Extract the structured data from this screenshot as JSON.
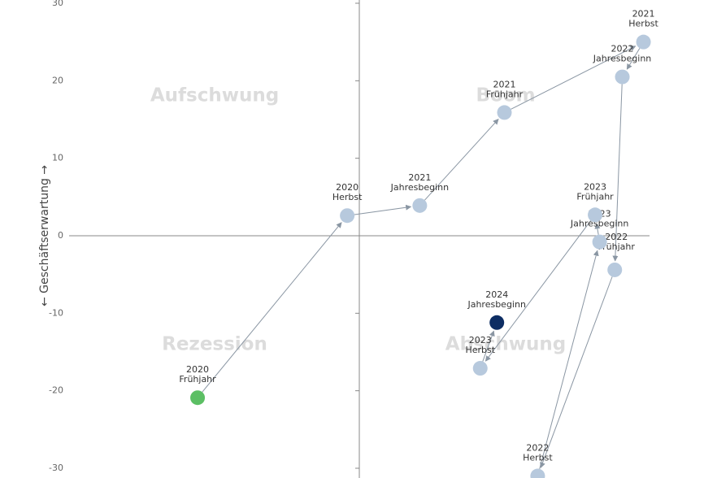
{
  "chart_data": {
    "type": "scatter",
    "y_label": "← Geschäftserwartung →",
    "quadrants": [
      "Aufschwung",
      "Boom",
      "Rezession",
      "Abschwung"
    ],
    "xlim": [
      -19.2,
      19.2
    ],
    "ylim": [
      -30,
      30
    ],
    "yticks": [
      -30,
      -20,
      -10,
      0,
      10,
      20,
      30
    ],
    "points": [
      {
        "year": "2020",
        "season": "Frühjahr",
        "x": -10.7,
        "y": -20.9,
        "color": "#5cbf64"
      },
      {
        "year": "2020",
        "season": "Herbst",
        "x": -0.8,
        "y": 2.6,
        "color": "#b7c9dd"
      },
      {
        "year": "2021",
        "season": "Jahresbeginn",
        "x": 4.0,
        "y": 3.9,
        "color": "#b7c9dd"
      },
      {
        "year": "2021",
        "season": "Frühjahr",
        "x": 9.6,
        "y": 15.9,
        "color": "#b7c9dd"
      },
      {
        "year": "2021",
        "season": "Herbst",
        "x": 18.8,
        "y": 25.0,
        "color": "#b7c9dd"
      },
      {
        "year": "2022",
        "season": "Jahresbeginn",
        "x": 17.4,
        "y": 20.5,
        "color": "#b7c9dd"
      },
      {
        "year": "2022",
        "season": "Frühjahr",
        "x": 16.9,
        "y": -4.4,
        "color": "#b7c9dd"
      },
      {
        "year": "2022",
        "season": "Herbst",
        "x": 11.8,
        "y": -31.0,
        "color": "#b7c9dd"
      },
      {
        "year": "2023",
        "season": "Jahresbeginn",
        "x": 15.9,
        "y": -0.8,
        "color": "#b7c9dd"
      },
      {
        "year": "2023",
        "season": "Frühjahr",
        "x": 15.6,
        "y": 2.7,
        "color": "#b7c9dd"
      },
      {
        "year": "2023",
        "season": "Herbst",
        "x": 8.0,
        "y": -17.1,
        "color": "#b7c9dd"
      },
      {
        "year": "2024",
        "season": "Jahresbeginn",
        "x": 9.1,
        "y": -11.2,
        "color": "#0d2d63"
      }
    ]
  }
}
